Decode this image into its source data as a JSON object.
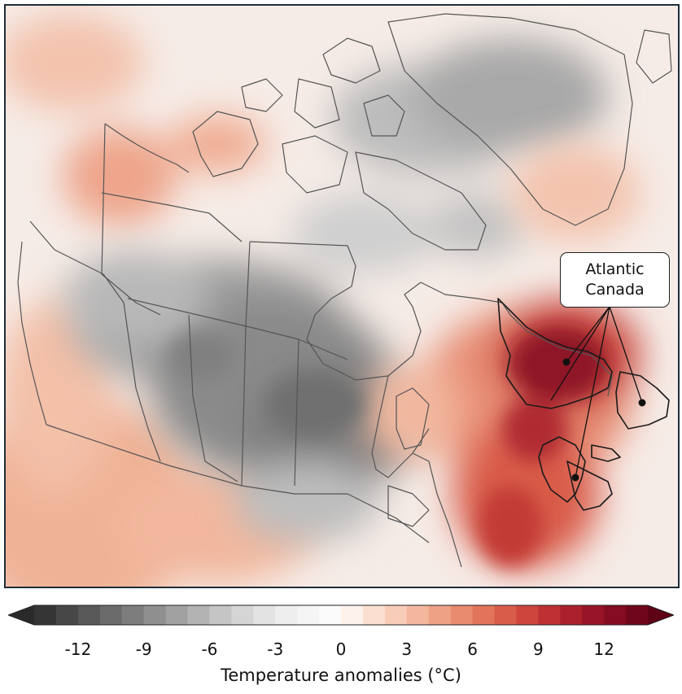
{
  "map": {
    "callout": {
      "label": "Atlantic\nCanada",
      "target_count": 4
    },
    "highlighted_region": "Atlantic Canada",
    "colors": {
      "strong_warm": "#8b0f1e",
      "warm": "#c8453a",
      "mild_warm": "#eea68a",
      "neutral": "#f6f1ef",
      "cool": "#b3b3b3",
      "cold": "#7a7a7a",
      "border_line": "#555555"
    }
  },
  "colorbar": {
    "title": "Temperature anomalies (°C)",
    "ticks": [
      -12,
      -9,
      -6,
      -3,
      0,
      3,
      6,
      9,
      12
    ],
    "range": [
      -14,
      14
    ],
    "step": 1,
    "extend": "both",
    "colors": [
      "#353535",
      "#474747",
      "#595959",
      "#6b6b6b",
      "#7d7d7d",
      "#8f8f8f",
      "#a1a1a1",
      "#b3b3b3",
      "#c5c5c5",
      "#d5d5d5",
      "#e3e3e3",
      "#eeeeee",
      "#f5f5f5",
      "#fbfbfb",
      "#fdf2ec",
      "#fbe0d2",
      "#f8cdb8",
      "#f4b79e",
      "#efa185",
      "#e98b6f",
      "#e2745b",
      "#d95c4a",
      "#cd453d",
      "#bf3034",
      "#ac1f2d",
      "#981427",
      "#850c22",
      "#70061c"
    ],
    "under_color": "#2a2a2a",
    "over_color": "#5e0316"
  }
}
